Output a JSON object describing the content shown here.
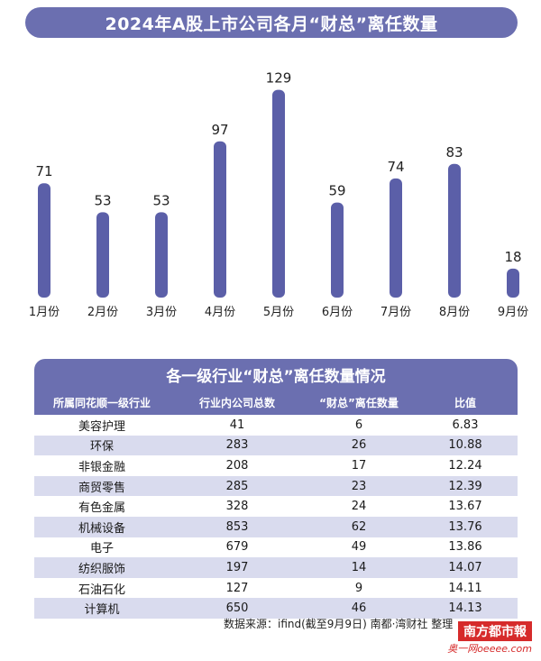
{
  "title": "2024年A股上市公司各月“财总”离任数量",
  "chart_data": {
    "type": "bar",
    "categories": [
      "1月份",
      "2月份",
      "3月份",
      "4月份",
      "5月份",
      "6月份",
      "7月份",
      "8月份",
      "9月份"
    ],
    "values": [
      71,
      53,
      53,
      97,
      129,
      59,
      74,
      83,
      18
    ],
    "title": "2024年A股上市公司各月“财总”离任数量",
    "xlabel": "",
    "ylabel": "",
    "ylim": [
      0,
      140
    ],
    "grid": false,
    "color": "#5b5fa8"
  },
  "table": {
    "title": "各一级行业“财总”离任数量情况",
    "headers": [
      "所属同花顺一级行业",
      "行业内公司总数",
      "“财总”离任数量",
      "比值"
    ],
    "rows": [
      [
        "美容护理",
        "41",
        "6",
        "6.83"
      ],
      [
        "环保",
        "283",
        "26",
        "10.88"
      ],
      [
        "非银金融",
        "208",
        "17",
        "12.24"
      ],
      [
        "商贸零售",
        "285",
        "23",
        "12.39"
      ],
      [
        "有色金属",
        "328",
        "24",
        "13.67"
      ],
      [
        "机械设备",
        "853",
        "62",
        "13.76"
      ],
      [
        "电子",
        "679",
        "49",
        "13.86"
      ],
      [
        "纺织服饰",
        "197",
        "14",
        "14.07"
      ],
      [
        "石油石化",
        "127",
        "9",
        "14.11"
      ],
      [
        "计算机",
        "650",
        "46",
        "14.13"
      ]
    ]
  },
  "source": "数据来源：ifind(截至9月9日)    南都·湾财社 整理",
  "logo": {
    "top": "南方都市報",
    "bottom": "奥一网oeeee.com"
  },
  "colors": {
    "accent": "#6b6fb0",
    "bar": "#5b5fa8",
    "shade": "#d9dbee",
    "logo": "#d62b2b"
  }
}
